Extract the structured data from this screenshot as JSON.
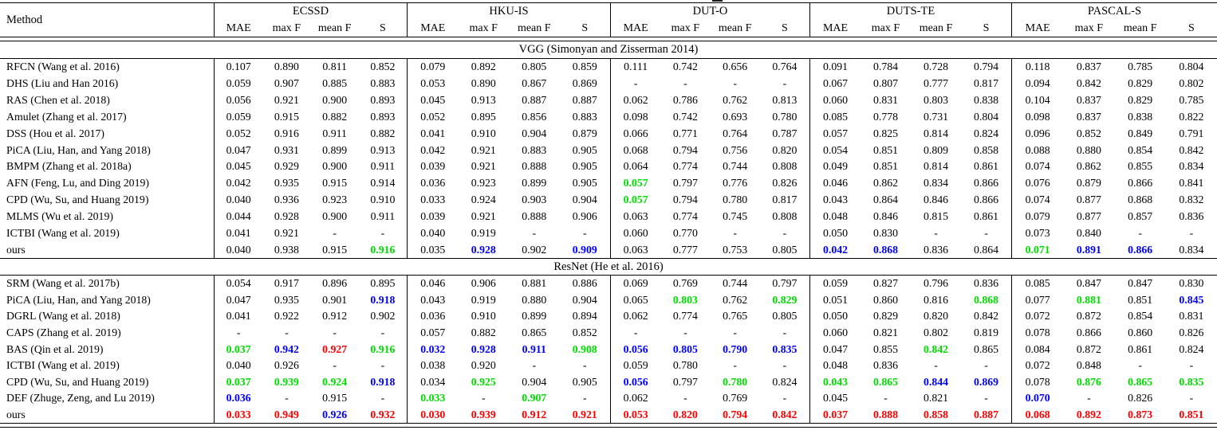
{
  "table": {
    "method_header": "Method",
    "datasets": [
      "ECSSD",
      "HKU-IS",
      "DUT-O",
      "DUTS-TE",
      "PASCAL-S"
    ],
    "metrics": [
      "MAE",
      "max F",
      "mean F",
      "S"
    ],
    "colors": {
      "k": "#000000",
      "g": "#00dd00",
      "b": "#0000ff",
      "r": "#ff0000"
    },
    "cell_format": "value or value|c where c is a color code: g=green bold, b=blue bold, r=red bold; plain values are black regular",
    "sections": [
      {
        "title": "VGG (Simonyan and Zisserman 2014)",
        "rows": [
          {
            "method": "RFCN (Wang et al. 2016)",
            "values": [
              "0.107",
              "0.890",
              "0.811",
              "0.852",
              "0.079",
              "0.892",
              "0.805",
              "0.859",
              "0.111",
              "0.742",
              "0.656",
              "0.764",
              "0.091",
              "0.784",
              "0.728",
              "0.794",
              "0.118",
              "0.837",
              "0.785",
              "0.804"
            ]
          },
          {
            "method": "DHS (Liu and Han 2016)",
            "values": [
              "0.059",
              "0.907",
              "0.885",
              "0.883",
              "0.053",
              "0.890",
              "0.867",
              "0.869",
              "-",
              "-",
              "-",
              "-",
              "0.067",
              "0.807",
              "0.777",
              "0.817",
              "0.094",
              "0.842",
              "0.829",
              "0.802"
            ]
          },
          {
            "method": "RAS (Chen et al. 2018)",
            "values": [
              "0.056",
              "0.921",
              "0.900",
              "0.893",
              "0.045",
              "0.913",
              "0.887",
              "0.887",
              "0.062",
              "0.786",
              "0.762",
              "0.813",
              "0.060",
              "0.831",
              "0.803",
              "0.838",
              "0.104",
              "0.837",
              "0.829",
              "0.785"
            ]
          },
          {
            "method": "Amulet (Zhang et al. 2017)",
            "values": [
              "0.059",
              "0.915",
              "0.882",
              "0.893",
              "0.052",
              "0.895",
              "0.856",
              "0.883",
              "0.098",
              "0.742",
              "0.693",
              "0.780",
              "0.085",
              "0.778",
              "0.731",
              "0.804",
              "0.098",
              "0.837",
              "0.838",
              "0.822"
            ]
          },
          {
            "method": "DSS (Hou et al. 2017)",
            "values": [
              "0.052",
              "0.916",
              "0.911",
              "0.882",
              "0.041",
              "0.910",
              "0.904",
              "0.879",
              "0.066",
              "0.771",
              "0.764",
              "0.787",
              "0.057",
              "0.825",
              "0.814",
              "0.824",
              "0.096",
              "0.852",
              "0.849",
              "0.791"
            ]
          },
          {
            "method": "PiCA (Liu, Han, and Yang 2018)",
            "values": [
              "0.047",
              "0.931",
              "0.899",
              "0.913",
              "0.042",
              "0.921",
              "0.883",
              "0.905",
              "0.068",
              "0.794",
              "0.756",
              "0.820",
              "0.054",
              "0.851",
              "0.809",
              "0.858",
              "0.088",
              "0.880",
              "0.854",
              "0.842"
            ]
          },
          {
            "method": "BMPM (Zhang et al. 2018a)",
            "values": [
              "0.045",
              "0.929",
              "0.900",
              "0.911",
              "0.039",
              "0.921",
              "0.888",
              "0.905",
              "0.064",
              "0.774",
              "0.744",
              "0.808",
              "0.049",
              "0.851",
              "0.814",
              "0.861",
              "0.074",
              "0.862",
              "0.855",
              "0.834"
            ]
          },
          {
            "method": "AFN (Feng, Lu, and Ding 2019)",
            "values": [
              "0.042",
              "0.935",
              "0.915",
              "0.914",
              "0.036",
              "0.923",
              "0.899",
              "0.905",
              "0.057|g",
              "0.797",
              "0.776",
              "0.826",
              "0.046",
              "0.862",
              "0.834",
              "0.866",
              "0.076",
              "0.879",
              "0.866",
              "0.841"
            ]
          },
          {
            "method": "CPD (Wu, Su, and Huang 2019)",
            "values": [
              "0.040",
              "0.936",
              "0.923",
              "0.910",
              "0.033",
              "0.924",
              "0.903",
              "0.904",
              "0.057|g",
              "0.794",
              "0.780",
              "0.817",
              "0.043",
              "0.864",
              "0.846",
              "0.866",
              "0.074",
              "0.877",
              "0.868",
              "0.832"
            ]
          },
          {
            "method": "MLMS (Wu et al. 2019)",
            "values": [
              "0.044",
              "0.928",
              "0.900",
              "0.911",
              "0.039",
              "0.921",
              "0.888",
              "0.906",
              "0.063",
              "0.774",
              "0.745",
              "0.808",
              "0.048",
              "0.846",
              "0.815",
              "0.861",
              "0.079",
              "0.877",
              "0.857",
              "0.836"
            ]
          },
          {
            "method": "ICTBI (Wang et al. 2019)",
            "values": [
              "0.041",
              "0.921",
              "-",
              "-",
              "0.040",
              "0.919",
              "-",
              "-",
              "0.060",
              "0.770",
              "-",
              "-",
              "0.050",
              "0.830",
              "-",
              "-",
              "0.073",
              "0.840",
              "-",
              "-"
            ]
          },
          {
            "method": "ours",
            "values": [
              "0.040",
              "0.938",
              "0.915",
              "0.916|g",
              "0.035",
              "0.928|b",
              "0.902",
              "0.909|b",
              "0.063",
              "0.777",
              "0.753",
              "0.805",
              "0.042|b",
              "0.868|b",
              "0.836",
              "0.864",
              "0.071|g",
              "0.891|b",
              "0.866|b",
              "0.834"
            ]
          }
        ]
      },
      {
        "title": "ResNet (He et al. 2016)",
        "rows": [
          {
            "method": "SRM (Wang et al. 2017b)",
            "values": [
              "0.054",
              "0.917",
              "0.896",
              "0.895",
              "0.046",
              "0.906",
              "0.881",
              "0.886",
              "0.069",
              "0.769",
              "0.744",
              "0.797",
              "0.059",
              "0.827",
              "0.796",
              "0.836",
              "0.085",
              "0.847",
              "0.847",
              "0.830"
            ]
          },
          {
            "method": "PiCA (Liu, Han, and Yang 2018)",
            "values": [
              "0.047",
              "0.935",
              "0.901",
              "0.918|b",
              "0.043",
              "0.919",
              "0.880",
              "0.904",
              "0.065",
              "0.803|g",
              "0.762",
              "0.829|g",
              "0.051",
              "0.860",
              "0.816",
              "0.868|g",
              "0.077",
              "0.881|g",
              "0.851",
              "0.845|b"
            ]
          },
          {
            "method": "DGRL (Wang et al. 2018)",
            "values": [
              "0.041",
              "0.922",
              "0.912",
              "0.902",
              "0.036",
              "0.910",
              "0.899",
              "0.894",
              "0.062",
              "0.774",
              "0.765",
              "0.805",
              "0.050",
              "0.829",
              "0.820",
              "0.842",
              "0.072",
              "0.872",
              "0.854",
              "0.831"
            ]
          },
          {
            "method": "CAPS (Zhang et al. 2019)",
            "values": [
              "-",
              "-",
              "-",
              "-",
              "0.057",
              "0.882",
              "0.865",
              "0.852",
              "-",
              "-",
              "-",
              "-",
              "0.060",
              "0.821",
              "0.802",
              "0.819",
              "0.078",
              "0.866",
              "0.860",
              "0.826"
            ]
          },
          {
            "method": "BAS (Qin et al. 2019)",
            "values": [
              "0.037|g",
              "0.942|b",
              "0.927|r",
              "0.916|g",
              "0.032|b",
              "0.928|b",
              "0.911|b",
              "0.908|g",
              "0.056|b",
              "0.805|b",
              "0.790|b",
              "0.835|b",
              "0.047",
              "0.855",
              "0.842|g",
              "0.865",
              "0.084",
              "0.872",
              "0.861",
              "0.824"
            ]
          },
          {
            "method": "ICTBI (Wang et al. 2019)",
            "values": [
              "0.040",
              "0.926",
              "-",
              "-",
              "0.038",
              "0.920",
              "-",
              "-",
              "0.059",
              "0.780",
              "-",
              "-",
              "0.048",
              "0.836",
              "-",
              "-",
              "0.072",
              "0.848",
              "-",
              "-"
            ]
          },
          {
            "method": "CPD (Wu, Su, and Huang 2019)",
            "values": [
              "0.037|g",
              "0.939|g",
              "0.924|g",
              "0.918|b",
              "0.034",
              "0.925|g",
              "0.904",
              "0.905",
              "0.056|b",
              "0.797",
              "0.780|g",
              "0.824",
              "0.043|g",
              "0.865|g",
              "0.844|b",
              "0.869|b",
              "0.078",
              "0.876|g",
              "0.865|g",
              "0.835|g"
            ]
          },
          {
            "method": "DEF (Zhuge, Zeng, and Lu 2019)",
            "values": [
              "0.036|b",
              "-",
              "0.915",
              "-",
              "0.033|g",
              "-",
              "0.907|g",
              "-",
              "0.062",
              "-",
              "0.769",
              "-",
              "0.045",
              "-",
              "0.821",
              "-",
              "0.070|b",
              "-",
              "0.826",
              "-"
            ]
          },
          {
            "method": "ours",
            "values": [
              "0.033|r",
              "0.949|r",
              "0.926|b",
              "0.932|r",
              "0.030|r",
              "0.939|r",
              "0.912|r",
              "0.921|r",
              "0.053|r",
              "0.820|r",
              "0.794|r",
              "0.842|r",
              "0.037|r",
              "0.888|r",
              "0.858|r",
              "0.887|r",
              "0.068|r",
              "0.892|r",
              "0.873|r",
              "0.851|r"
            ]
          }
        ]
      }
    ]
  }
}
